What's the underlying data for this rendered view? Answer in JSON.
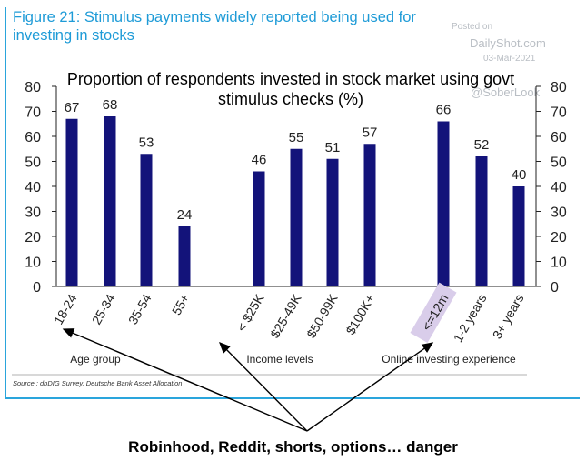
{
  "figure_title": "Figure 21: Stimulus payments widely reported being used for investing in stocks",
  "watermark": {
    "posted": "Posted on",
    "site": "DailyShot.com",
    "date": "03-Mar-2021",
    "handle": "@SoberLook"
  },
  "source": "Source : dbDIG Survey, Deutsche Bank Asset Allocation",
  "caption": "Robinhood, Reddit, shorts, options… danger",
  "colors": {
    "bar": "#13137a",
    "title_blue": "#1e9bd7",
    "frame_blue": "#2aa5dc",
    "highlight": "#d9cdea"
  },
  "highlighted_category": "<=12m",
  "chart_data": {
    "type": "bar",
    "title": "Proportion of respondents invested in stock market using govt stimulus checks (%)",
    "ylim": [
      0,
      80
    ],
    "yticks": [
      0,
      10,
      20,
      30,
      40,
      50,
      60,
      70,
      80
    ],
    "secondary_y_axis": true,
    "grid": false,
    "data_labels": true,
    "groups": [
      {
        "name": "Age group",
        "categories": [
          "18-24",
          "25-34",
          "35-54",
          "55+"
        ],
        "values": [
          67,
          68,
          53,
          24
        ]
      },
      {
        "name": "Income levels",
        "categories": [
          "< $25K",
          "$25-49K",
          "$50-99K",
          "$100K+"
        ],
        "values": [
          46,
          55,
          51,
          57
        ]
      },
      {
        "name": "Online investing experience",
        "categories": [
          "<=12m",
          "1-2 years",
          "3+ years"
        ],
        "values": [
          66,
          52,
          40
        ]
      }
    ]
  }
}
